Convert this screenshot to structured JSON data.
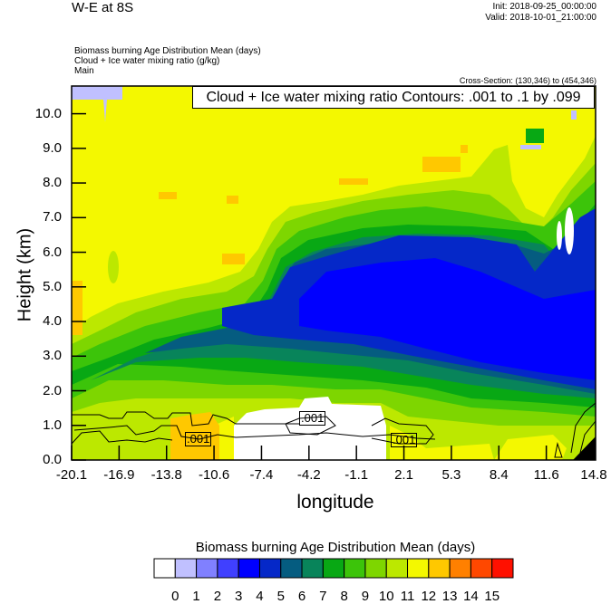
{
  "header": {
    "title": "W-E at 8S",
    "init": "Init: 2018-09-25_00:00:00",
    "valid": "Valid: 2018-10-01_21:00:00",
    "subtitles": [
      "Biomass burning Age Distribution Mean   (days)",
      "Cloud + Ice water mixing ratio   (g/kg)",
      "Main"
    ],
    "cross_section": "Cross-Section: (130,346) to (454,346)"
  },
  "chart_data": {
    "type": "heatmap",
    "description_fields": "filled contour cross-section with line contour overlay",
    "contour_title": "Cloud + Ice water mixing ratio Contours: .001 to .1 by .099",
    "contour_labels": [
      ".001",
      ".001",
      ".001"
    ],
    "xlabel": "longitude",
    "ylabel": "Height (km)",
    "xlim": [
      -20.1,
      14.8
    ],
    "ylim": [
      0.0,
      10.8
    ],
    "xticks": [
      "-20.1",
      "-16.9",
      "-13.8",
      "-10.6",
      "-7.4",
      "-4.2",
      "-1.1",
      "2.1",
      "5.3",
      "8.4",
      "11.6",
      "14.8"
    ],
    "yticks": [
      "0.0",
      "1.0",
      "2.0",
      "3.0",
      "4.0",
      "5.0",
      "6.0",
      "7.0",
      "8.0",
      "9.0",
      "10.0"
    ],
    "colorbar": {
      "title": "Biomass burning Age Distribution Mean  (days)",
      "levels": [
        "0",
        "1",
        "2",
        "3",
        "4",
        "5",
        "6",
        "7",
        "8",
        "9",
        "10",
        "11",
        "12",
        "13",
        "14",
        "15"
      ],
      "colors": [
        "#ffffff",
        "#c0c0ff",
        "#8080ff",
        "#4040ff",
        "#0000ff",
        "#0528c8",
        "#055c80",
        "#08845a",
        "#08a814",
        "#3cc40a",
        "#7ed600",
        "#bce800",
        "#f4f800",
        "#ffc800",
        "#ff8000",
        "#ff4800",
        "#ff1000"
      ]
    }
  }
}
